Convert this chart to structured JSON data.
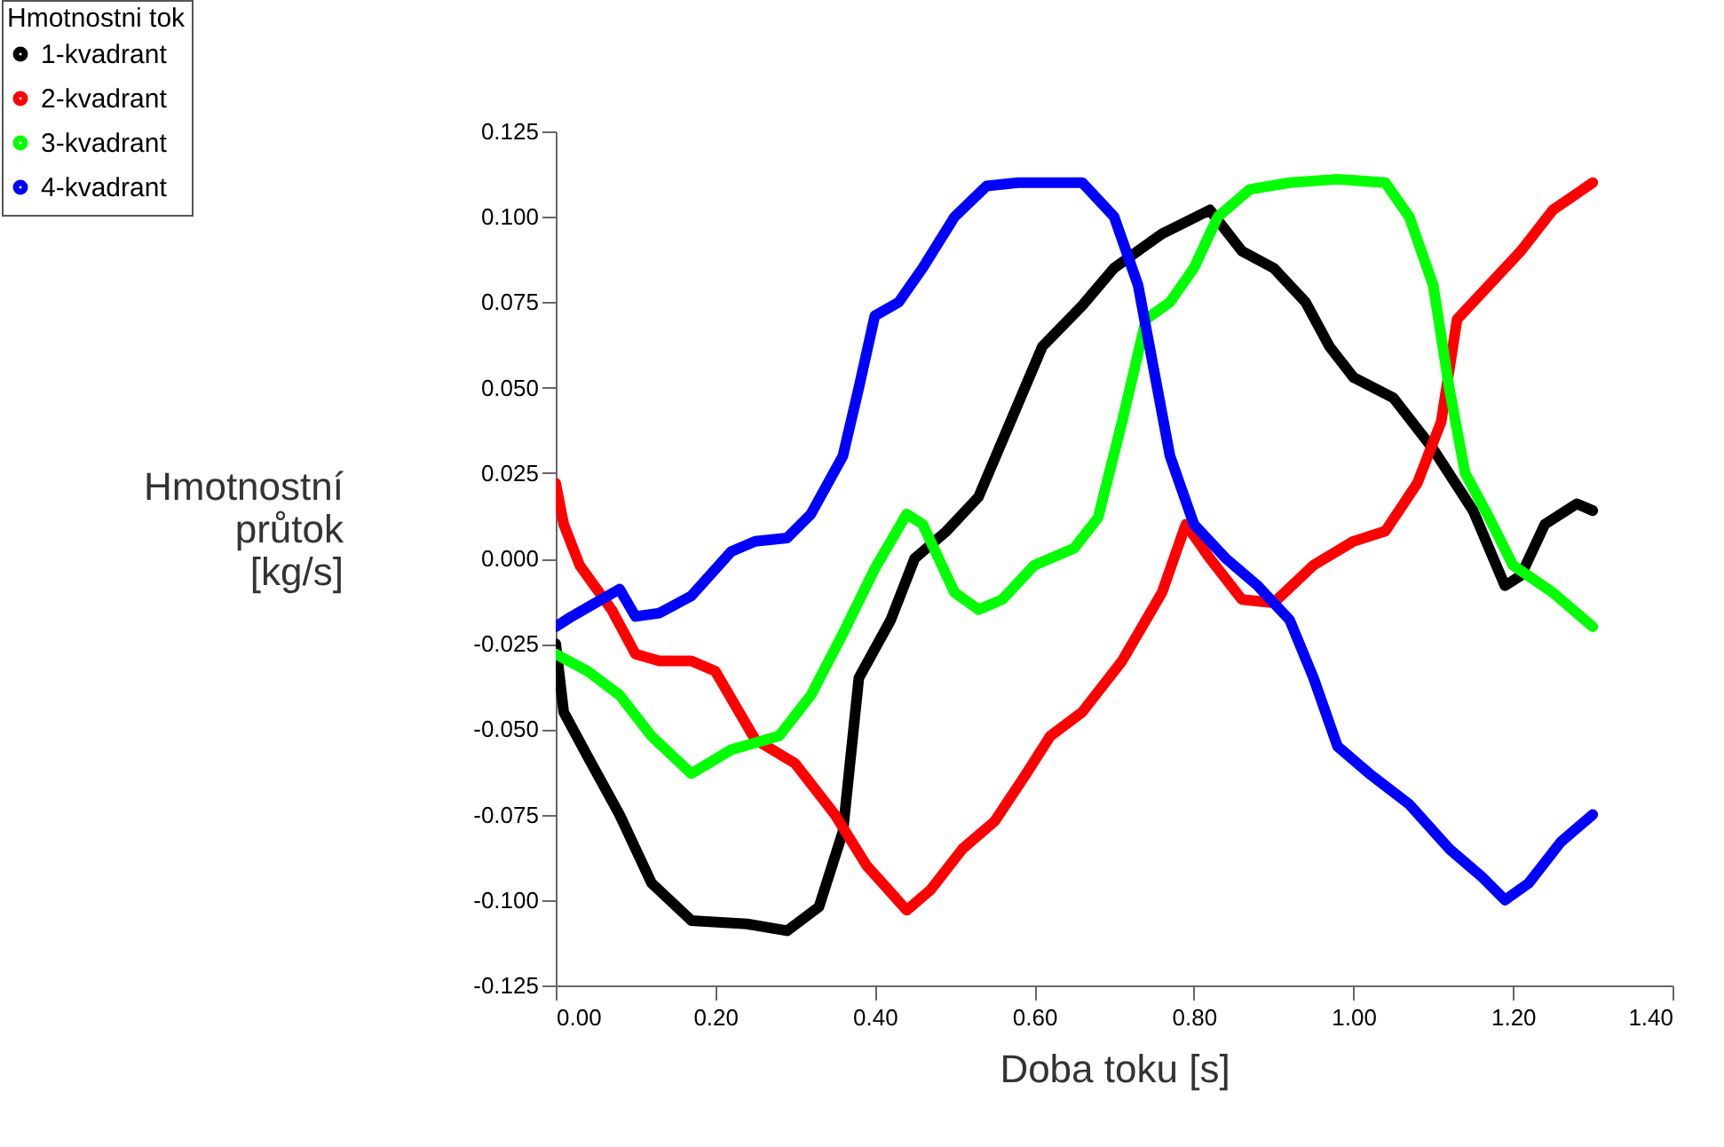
{
  "chart_data": {
    "type": "line",
    "xlabel": "Doba toku [s]",
    "ylabel": "Hmotnostní\nprůtok\n[kg/s]",
    "legend_title": "Hmotnostni tok",
    "legend": "top left",
    "grid": false,
    "marker": "none",
    "line_style": "solid",
    "xlim": [
      0,
      1.4
    ],
    "xticks": [
      {
        "value": 0,
        "label": "0.00"
      },
      {
        "value": 0.2,
        "label": "0.20"
      },
      {
        "value": 0.4,
        "label": "0.40"
      },
      {
        "value": 0.6,
        "label": "0.60"
      },
      {
        "value": 0.8,
        "label": "0.80"
      },
      {
        "value": 1.0,
        "label": "1.00"
      },
      {
        "value": 1.2,
        "label": "1.20"
      },
      {
        "value": 1.4,
        "label": "1.40"
      }
    ],
    "ylim": [
      -0.125,
      0.125
    ],
    "yticks": [
      -0.125,
      {
        "value": -0.1,
        "label": "-0.100"
      },
      -0.075,
      {
        "value": -0.05,
        "label": "-0.050"
      },
      -0.025,
      {
        "value": 0,
        "label": "0.000"
      },
      0.025,
      {
        "value": 0.05,
        "label": "0.050"
      },
      0.075,
      {
        "value": 0.1,
        "label": "0.100"
      },
      0.125
    ],
    "series": [
      {
        "name": "1-kvadrant",
        "color": "#000000",
        "x": [
          0,
          0.01,
          0.04,
          0.08,
          0.12,
          0.17,
          0.24,
          0.29,
          0.33,
          0.36,
          0.38,
          0.42,
          0.45,
          0.49,
          0.53,
          0.57,
          0.61,
          0.66,
          0.7,
          0.76,
          0.82,
          0.86,
          0.9,
          0.94,
          0.97,
          1.0,
          1.05,
          1.1,
          1.15,
          1.19,
          1.21,
          1.24,
          1.28,
          1.3
        ],
        "values": [
          -0.025,
          -0.045,
          -0.058,
          -0.075,
          -0.095,
          -0.106,
          -0.107,
          -0.109,
          -0.102,
          -0.08,
          -0.035,
          -0.018,
          0.0,
          0.008,
          0.018,
          0.04,
          0.062,
          0.074,
          0.085,
          0.095,
          0.102,
          0.09,
          0.085,
          0.075,
          0.062,
          0.053,
          0.047,
          0.032,
          0.014,
          -0.008,
          -0.005,
          0.01,
          0.016,
          0.014
        ]
      },
      {
        "name": "2-kvadrant",
        "color": "#ff0000",
        "x": [
          0,
          0.01,
          0.03,
          0.07,
          0.1,
          0.13,
          0.17,
          0.2,
          0.25,
          0.3,
          0.35,
          0.39,
          0.44,
          0.47,
          0.51,
          0.55,
          0.59,
          0.62,
          0.66,
          0.71,
          0.76,
          0.79,
          0.82,
          0.86,
          0.9,
          0.95,
          1.0,
          1.04,
          1.08,
          1.11,
          1.13,
          1.17,
          1.21,
          1.25,
          1.3
        ],
        "values": [
          0.022,
          0.01,
          -0.002,
          -0.015,
          -0.028,
          -0.03,
          -0.03,
          -0.033,
          -0.053,
          -0.06,
          -0.075,
          -0.09,
          -0.103,
          -0.097,
          -0.085,
          -0.077,
          -0.063,
          -0.052,
          -0.045,
          -0.03,
          -0.01,
          0.01,
          0.0,
          -0.012,
          -0.013,
          -0.002,
          0.005,
          0.008,
          0.022,
          0.04,
          0.07,
          0.08,
          0.09,
          0.102,
          0.11
        ]
      },
      {
        "name": "3-kvadrant",
        "color": "#00ff00",
        "x": [
          0,
          0.04,
          0.08,
          0.12,
          0.17,
          0.22,
          0.28,
          0.32,
          0.36,
          0.4,
          0.44,
          0.46,
          0.5,
          0.53,
          0.56,
          0.6,
          0.65,
          0.68,
          0.71,
          0.74,
          0.77,
          0.8,
          0.83,
          0.87,
          0.92,
          0.98,
          1.04,
          1.07,
          1.1,
          1.12,
          1.14,
          1.17,
          1.2,
          1.25,
          1.3
        ],
        "values": [
          -0.028,
          -0.033,
          -0.04,
          -0.052,
          -0.063,
          -0.056,
          -0.052,
          -0.04,
          -0.022,
          -0.003,
          0.013,
          0.01,
          -0.01,
          -0.015,
          -0.012,
          -0.002,
          0.003,
          0.012,
          0.04,
          0.07,
          0.075,
          0.085,
          0.1,
          0.108,
          0.11,
          0.111,
          0.11,
          0.1,
          0.08,
          0.05,
          0.025,
          0.012,
          -0.002,
          -0.01,
          -0.02
        ]
      },
      {
        "name": "4-kvadrant",
        "color": "#0000ff",
        "x": [
          0,
          0.02,
          0.05,
          0.08,
          0.1,
          0.13,
          0.17,
          0.22,
          0.25,
          0.29,
          0.32,
          0.36,
          0.38,
          0.4,
          0.43,
          0.46,
          0.5,
          0.54,
          0.58,
          0.62,
          0.66,
          0.7,
          0.73,
          0.75,
          0.77,
          0.8,
          0.84,
          0.88,
          0.92,
          0.95,
          0.98,
          1.02,
          1.07,
          1.12,
          1.16,
          1.19,
          1.22,
          1.26,
          1.3
        ],
        "values": [
          -0.02,
          -0.017,
          -0.013,
          -0.009,
          -0.017,
          -0.016,
          -0.011,
          0.002,
          0.005,
          0.006,
          0.013,
          0.03,
          0.05,
          0.071,
          0.075,
          0.085,
          0.1,
          0.109,
          0.11,
          0.11,
          0.11,
          0.1,
          0.08,
          0.055,
          0.03,
          0.01,
          0.0,
          -0.008,
          -0.018,
          -0.035,
          -0.055,
          -0.063,
          -0.072,
          -0.085,
          -0.093,
          -0.1,
          -0.095,
          -0.083,
          -0.075
        ]
      }
    ]
  }
}
